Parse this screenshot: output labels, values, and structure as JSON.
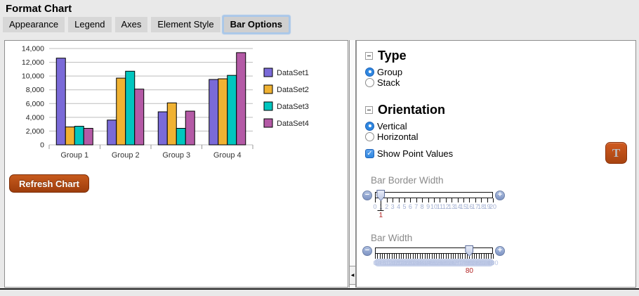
{
  "title": "Format Chart",
  "tabs": [
    {
      "label": "Appearance",
      "active": false
    },
    {
      "label": "Legend",
      "active": false
    },
    {
      "label": "Axes",
      "active": false
    },
    {
      "label": "Element Style",
      "active": false
    },
    {
      "label": "Bar Options",
      "active": true
    }
  ],
  "chart_data": {
    "type": "bar",
    "categories": [
      "Group 1",
      "Group 2",
      "Group 3",
      "Group 4"
    ],
    "series": [
      {
        "name": "DataSet1",
        "color": "#7a6ad8",
        "values": [
          12600,
          3600,
          4800,
          9500
        ]
      },
      {
        "name": "DataSet2",
        "color": "#f0b232",
        "values": [
          2600,
          9700,
          6100,
          9600
        ]
      },
      {
        "name": "DataSet3",
        "color": "#00c6bf",
        "values": [
          2700,
          10700,
          2400,
          10100
        ]
      },
      {
        "name": "DataSet4",
        "color": "#b45aa6",
        "values": [
          2400,
          8100,
          4900,
          13400
        ]
      }
    ],
    "title": "",
    "xlabel": "",
    "ylabel": "",
    "ylim": [
      0,
      14000
    ],
    "ytick_step": 2000,
    "grid": true,
    "legend_position": "right"
  },
  "left_panel": {
    "refresh_button": "Refresh Chart"
  },
  "right_panel": {
    "sections": [
      {
        "title": "Type",
        "options": [
          {
            "label": "Group",
            "selected": true
          },
          {
            "label": "Stack",
            "selected": false
          }
        ]
      },
      {
        "title": "Orientation",
        "options": [
          {
            "label": "Vertical",
            "selected": true
          },
          {
            "label": "Horizontal",
            "selected": false
          }
        ]
      }
    ],
    "show_point_values": {
      "label": "Show Point Values",
      "checked": true
    },
    "t_button": "T",
    "sliders": [
      {
        "label": "Bar Border Width",
        "min": 0,
        "max": 20,
        "step": 1,
        "value": 1,
        "dense": false
      },
      {
        "label": "Bar Width",
        "min": 0,
        "max": 100,
        "step": 2,
        "value": 80,
        "dense": true
      }
    ]
  },
  "icons": {
    "minus": "−",
    "plus": "+",
    "checkmark": "✓",
    "splitter_arrow": "◀"
  },
  "colors": {
    "accent_blue": "#2f87e0",
    "button_orange": "#b5470f",
    "slider_blue": "#8fa5ce",
    "value_red": "#b22222",
    "tab_highlight": "#a9c7e9"
  }
}
